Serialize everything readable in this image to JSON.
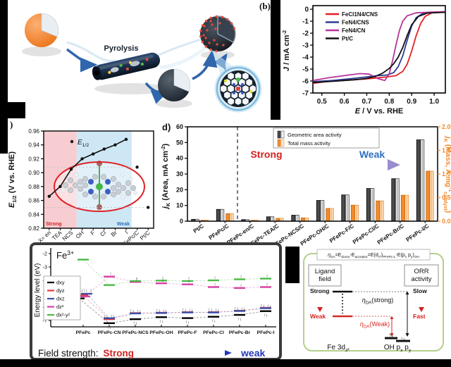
{
  "scheme": {
    "panel_label": "(b)",
    "pyrolysis_label": "Pyrolysis"
  },
  "panel_labels": {
    "c": ")",
    "d": "d)"
  },
  "colors": {
    "red": "#e31f26",
    "blue": "#2e3d96",
    "magenta": "#b6339b",
    "black": "#111111",
    "orange": "#f28a2e",
    "gray_bar": "#4b4b4b",
    "strong_red": "#d6201f",
    "weak_blue": "#2f6fc0",
    "region_pink": "#f7cdd1",
    "region_blue": "#cde7f5",
    "green_border": "#b5cf8e"
  },
  "chart_data": [
    {
      "type": "line",
      "id": "lsv",
      "xlabel_segs": [
        {
          "t": "E",
          "it": 1
        },
        {
          "t": " / V vs. RHE"
        }
      ],
      "ylabel_segs": [
        {
          "t": "J",
          "it": 1
        },
        {
          "t": " / mA cm"
        },
        {
          "t": "-2",
          "sup": 1
        }
      ],
      "xlim": [
        0.46,
        1.05
      ],
      "ylim": [
        -7,
        0.3
      ],
      "xticks": [
        "0.5",
        "0.6",
        "0.7",
        "0.8",
        "0.9",
        "1.0"
      ],
      "yticks": [
        "0",
        "-1",
        "-2",
        "-3",
        "-4",
        "-5",
        "-6",
        "-7"
      ],
      "legend_position": "top-left",
      "series": [
        {
          "name": "FeCl1N4/CNS",
          "color": "#e31f26",
          "points": [
            [
              0.46,
              -6.2
            ],
            [
              0.52,
              -6.05
            ],
            [
              0.6,
              -5.95
            ],
            [
              0.68,
              -5.85
            ],
            [
              0.74,
              -5.75
            ],
            [
              0.79,
              -5.65
            ],
            [
              0.83,
              -5.55
            ],
            [
              0.86,
              -5.2
            ],
            [
              0.88,
              -4.6
            ],
            [
              0.9,
              -3.5
            ],
            [
              0.92,
              -2.2
            ],
            [
              0.94,
              -1.2
            ],
            [
              0.96,
              -0.6
            ],
            [
              0.99,
              -0.3
            ],
            [
              1.05,
              -0.22
            ]
          ]
        },
        {
          "name": "FeN4/CNS",
          "color": "#2e3d96",
          "points": [
            [
              0.46,
              -6.05
            ],
            [
              0.55,
              -5.95
            ],
            [
              0.63,
              -5.8
            ],
            [
              0.7,
              -5.65
            ],
            [
              0.75,
              -5.55
            ],
            [
              0.79,
              -5.5
            ],
            [
              0.82,
              -5.3
            ],
            [
              0.84,
              -4.8
            ],
            [
              0.86,
              -3.9
            ],
            [
              0.88,
              -2.6
            ],
            [
              0.9,
              -1.4
            ],
            [
              0.92,
              -0.7
            ],
            [
              0.95,
              -0.35
            ],
            [
              1.0,
              -0.25
            ],
            [
              1.05,
              -0.2
            ]
          ]
        },
        {
          "name": "FeN4/CN",
          "color": "#b6339b",
          "points": [
            [
              0.46,
              -5.95
            ],
            [
              0.54,
              -5.7
            ],
            [
              0.62,
              -5.5
            ],
            [
              0.67,
              -5.38
            ],
            [
              0.71,
              -5.42
            ],
            [
              0.75,
              -5.8
            ],
            [
              0.78,
              -5.95
            ],
            [
              0.8,
              -5.4
            ],
            [
              0.815,
              -4.3
            ],
            [
              0.83,
              -3.0
            ],
            [
              0.845,
              -1.8
            ],
            [
              0.86,
              -1.0
            ],
            [
              0.88,
              -0.55
            ],
            [
              0.92,
              -0.3
            ],
            [
              1.0,
              -0.23
            ],
            [
              1.05,
              -0.2
            ]
          ]
        },
        {
          "name": "Pt/C",
          "color": "#111111",
          "points": [
            [
              0.46,
              -6.12
            ],
            [
              0.55,
              -6.02
            ],
            [
              0.64,
              -5.9
            ],
            [
              0.7,
              -5.78
            ],
            [
              0.74,
              -5.6
            ],
            [
              0.77,
              -5.35
            ],
            [
              0.8,
              -4.95
            ],
            [
              0.82,
              -4.55
            ],
            [
              0.84,
              -4.0
            ],
            [
              0.86,
              -3.2
            ],
            [
              0.88,
              -2.2
            ],
            [
              0.9,
              -1.3
            ],
            [
              0.93,
              -0.6
            ],
            [
              0.97,
              -0.32
            ],
            [
              1.05,
              -0.26
            ]
          ]
        }
      ]
    },
    {
      "type": "scatter-line",
      "id": "halfwave",
      "ylabel_segs": [
        {
          "t": "E",
          "it": 1
        },
        {
          "t": "1/2",
          "sub": 1
        },
        {
          "t": " (V vs. RHE)"
        }
      ],
      "xlabel": "PFePc-L/C",
      "legend_segs": [
        {
          "t": "E",
          "it": 1
        },
        {
          "t": "1/2",
          "sub": 1
        }
      ],
      "ylim": [
        0.82,
        0.96
      ],
      "yticks": [
        "0.82",
        "0.84",
        "0.86",
        "0.88",
        "0.90",
        "0.92",
        "0.94",
        "0.96"
      ],
      "categories": [
        "X= en",
        "TEA",
        "NCS",
        "OH",
        "F",
        "Cl",
        "Br",
        "I",
        "PFePc/C",
        "Pt/C"
      ],
      "line_values": [
        0.866,
        0.88,
        0.905,
        0.92,
        0.927,
        0.934,
        0.94,
        0.948
      ],
      "reference_points": [
        {
          "category": "PFePc/C",
          "index": 8,
          "value": 0.908
        },
        {
          "category": "Pt/C",
          "index": 9,
          "value": 0.85
        }
      ],
      "regions": [
        {
          "label": "Strong",
          "span": [
            0,
            3
          ],
          "color": "#f7cdd1",
          "label_color": "#d6201f"
        },
        {
          "label": "Weak",
          "span": [
            3,
            8
          ],
          "color": "#cde7f5",
          "label_color": "#2f6fc0"
        }
      ]
    },
    {
      "type": "bar",
      "id": "kinetic-activity",
      "ylabel_left_segs": [
        {
          "t": "j",
          "it": 1
        },
        {
          "t": "K",
          "sub": 1
        },
        {
          "t": " (Area, mA cm"
        },
        {
          "t": "-2",
          "sup": 1
        },
        {
          "t": ")"
        }
      ],
      "ylabel_right_segs": [
        {
          "t": "j",
          "it": 1
        },
        {
          "t": "K",
          "sub": 1
        },
        {
          "t": " (Mass, A mg"
        },
        {
          "t": "-1",
          "sup": 1
        },
        {
          "t": "catalyst",
          "sub": 1
        },
        {
          "t": ")"
        }
      ],
      "ylim_left": [
        0,
        60
      ],
      "yticks_left": [
        "0",
        "10",
        "20",
        "30",
        "40",
        "50",
        "60"
      ],
      "ylim_right": [
        0,
        2.0
      ],
      "yticks_right": [
        "0.0",
        "0.5",
        "1.0",
        "1.5",
        "2.0"
      ],
      "categories": [
        "Pt/C",
        "PFePc/C",
        "PFePc-en/C",
        "PFePc-TEA/C",
        "PFePc-NCS/C",
        "PFePc-OH/C",
        "PFePc-F/C",
        "PFePc-Cl/C",
        "PFePc-Br/C",
        "PFePc-I/C"
      ],
      "series": [
        {
          "name": "Geometric area activity",
          "axis": "left",
          "color": "#4b4b4b",
          "values": [
            1.2,
            7.5,
            1.0,
            2.8,
            3.8,
            13.2,
            16.7,
            20.8,
            27.0,
            51.7
          ]
        },
        {
          "name": "Total mass activity",
          "axis": "right",
          "color": "#f28a2e",
          "values": [
            0.02,
            0.16,
            0.02,
            0.06,
            0.07,
            0.27,
            0.34,
            0.43,
            0.55,
            1.06
          ]
        }
      ],
      "annotations": {
        "strong": "Strong",
        "weak": "Weak"
      },
      "dashed_divider_after_index": 1
    },
    {
      "type": "energy-levels",
      "id": "fe-d-levels",
      "title_segs": [
        {
          "t": "Fe"
        },
        {
          "t": "3+",
          "sup": 1
        }
      ],
      "ylabel": "Energy level (eV)",
      "ylim": [
        -7.6,
        -2
      ],
      "yticks": [
        "-2",
        "-3",
        "-4",
        "-5",
        "-6",
        "-7"
      ],
      "categories": [
        "PFePc",
        "PFePc-CN",
        "PFePc-NCS",
        "PFePc-OH",
        "PFePc-F",
        "PFePc-Cl",
        "PFePc-Br",
        "PFePc-I"
      ],
      "series": [
        {
          "name": "dxy",
          "color": "#000000",
          "values": [
            -5.35,
            -7.2,
            -6.9,
            -6.75,
            -6.82,
            -6.72,
            -6.58,
            -6.3
          ]
        },
        {
          "name": "dyz",
          "color": "#e8383d",
          "values": [
            -5.1,
            -6.9,
            -6.45,
            -6.42,
            -6.38,
            -6.38,
            -6.27,
            -6.05
          ]
        },
        {
          "name": "dxz",
          "color": "#3a4fa8",
          "values": [
            -5.0,
            -6.83,
            -6.47,
            -6.44,
            -6.4,
            -6.4,
            -6.29,
            -6.08
          ]
        },
        {
          "name": "dz²",
          "color": "#d63fa0",
          "values": [
            -5.2,
            -3.72,
            -4.12,
            -4.22,
            -4.3,
            -4.5,
            -4.57,
            -4.5
          ]
        },
        {
          "name": "dx²-y²",
          "color": "#4cb848",
          "values": [
            -2.45,
            -4.35,
            -4.05,
            -4.02,
            -4.05,
            -4.0,
            -3.92,
            -3.87
          ]
        }
      ],
      "footer": {
        "prefix": "Field strength:",
        "strong": "Strong",
        "weak": "weak"
      }
    }
  ],
  "panel_f": {
    "formula_segs": [
      {
        "t": "η",
        "it": 1
      },
      {
        "t": "DA",
        "sub": 1
      },
      {
        "t": "=E"
      },
      {
        "t": "donor",
        "sub": 1
      },
      {
        "t": "-E"
      },
      {
        "t": "acceptor",
        "sub": 1
      },
      {
        "t": "=E(d"
      },
      {
        "t": "z²",
        "sub": 1
      },
      {
        "t": ")"
      },
      {
        "t": "PFePc-L",
        "sub": 1
      },
      {
        "t": "-E(p"
      },
      {
        "t": "x",
        "sub": 1
      },
      {
        "t": " p"
      },
      {
        "t": "y",
        "sub": 1
      },
      {
        "t": ")"
      },
      {
        "t": "OH",
        "sub": 1
      }
    ],
    "ligand_box": "Ligand field",
    "orr_box": "ORR activity",
    "strong": "Strong",
    "weak": "Weak",
    "slow": "Slow",
    "fast": "Fast",
    "eta_strong_segs": [
      {
        "t": "η",
        "it": 1
      },
      {
        "t": "DA",
        "sub": 1
      },
      {
        "t": "(strong)"
      }
    ],
    "eta_weak_segs": [
      {
        "t": "η",
        "it": 1
      },
      {
        "t": "DA",
        "sub": 1
      },
      {
        "t": "(Weak)"
      }
    ],
    "fe_segs": [
      {
        "t": "Fe 3d"
      },
      {
        "t": "z²",
        "sub": 1
      }
    ],
    "oh_segs": [
      {
        "t": "OH p"
      },
      {
        "t": "x",
        "sub": 1
      },
      {
        "t": " p"
      },
      {
        "t": "y",
        "sub": 1
      }
    ]
  }
}
